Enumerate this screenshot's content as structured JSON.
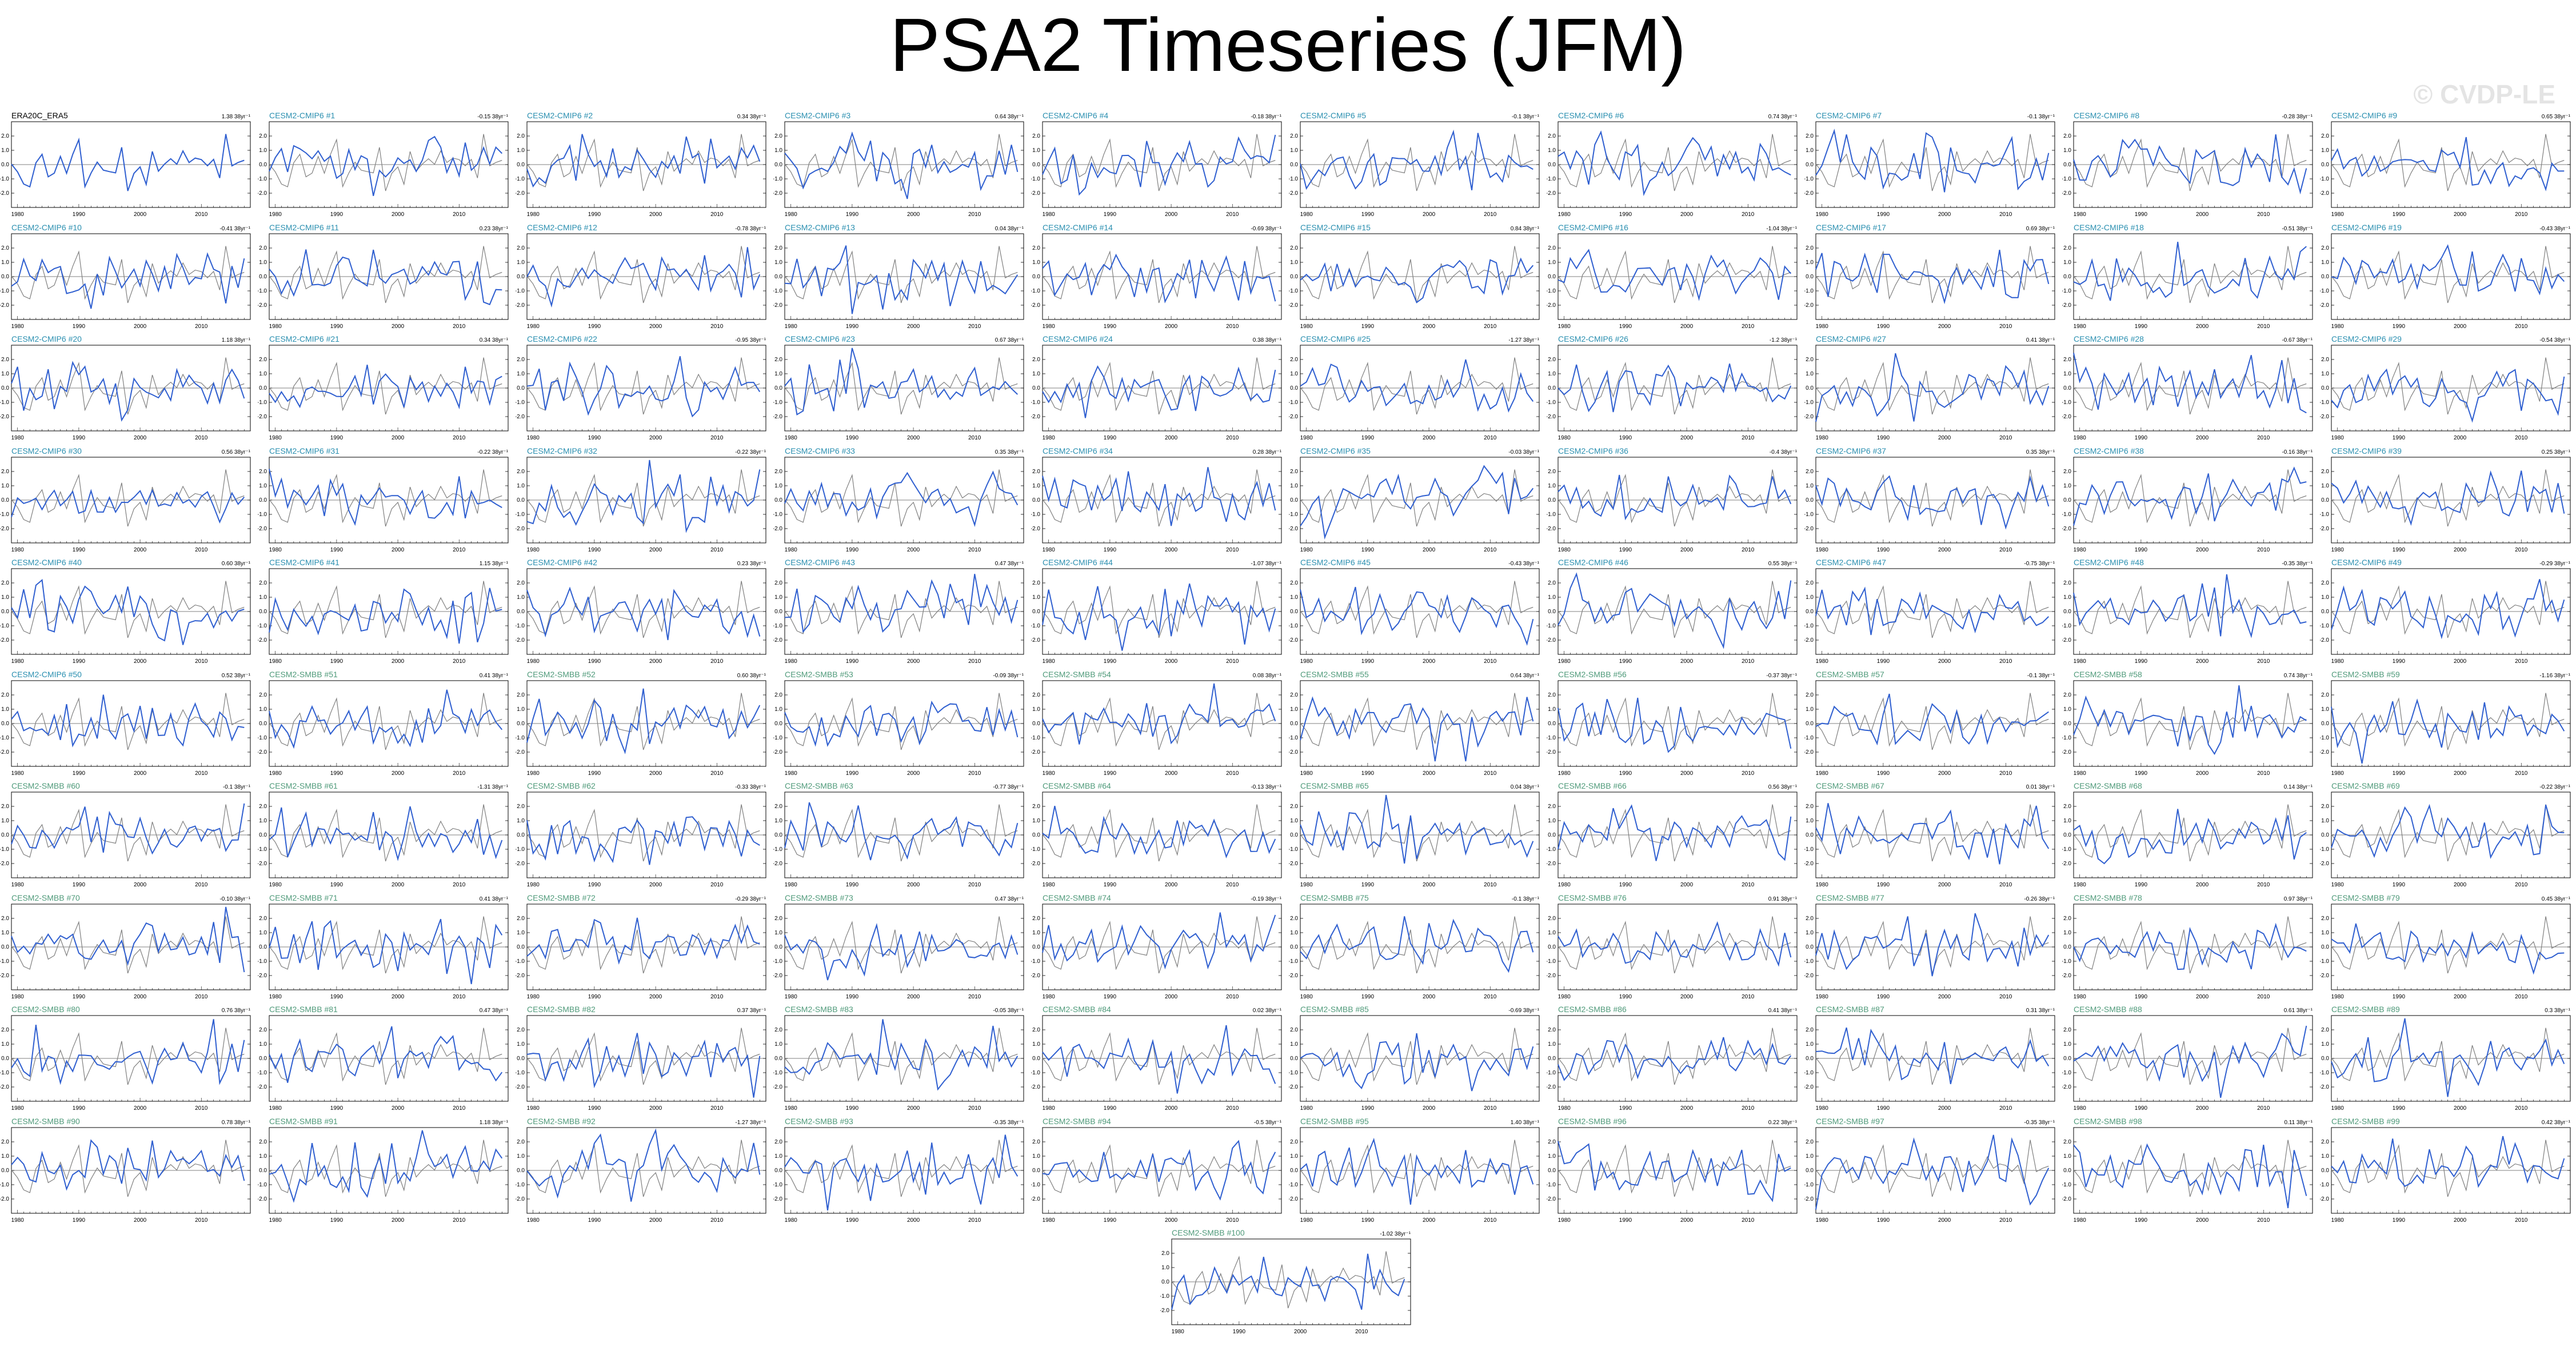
{
  "title": "PSA2 Timeseries (JFM)",
  "watermark": "© CVDP-LE",
  "colors": {
    "observed": "#7f7f7f",
    "member": "#2f5fd0",
    "cmip6_label": "#2a8fb0",
    "smbb_label": "#4f9a7a",
    "obs_label": "#000000"
  },
  "chart_data": {
    "type": "line",
    "x_ticks": [
      1980,
      1990,
      2000,
      2010
    ],
    "xlim": [
      1979,
      2018
    ],
    "y_ticks_default": [
      "-2.0",
      "-1.0",
      "0.0",
      "1.0",
      "2.0"
    ],
    "panels": [
      {
        "label": "ERA20C_ERA5",
        "trend": "1.38 38yr⁻¹",
        "group": "obs"
      },
      {
        "label": "CESM2-CMIP6 #1",
        "trend": "-0.15 38yr⁻¹",
        "group": "cmip6"
      },
      {
        "label": "CESM2-CMIP6 #2",
        "trend": "0.34 38yr⁻¹",
        "group": "cmip6"
      },
      {
        "label": "CESM2-CMIP6 #3",
        "trend": "0.64 38yr⁻¹",
        "group": "cmip6"
      },
      {
        "label": "CESM2-CMIP6 #4",
        "trend": "-0.18 38yr⁻¹",
        "group": "cmip6"
      },
      {
        "label": "CESM2-CMIP6 #5",
        "trend": "-0.1 38yr⁻¹",
        "group": "cmip6"
      },
      {
        "label": "CESM2-CMIP6 #6",
        "trend": "0.74 38yr⁻¹",
        "group": "cmip6"
      },
      {
        "label": "CESM2-CMIP6 #7",
        "trend": "-0.1 38yr⁻¹",
        "group": "cmip6"
      },
      {
        "label": "CESM2-CMIP6 #8",
        "trend": "-0.28 38yr⁻¹",
        "group": "cmip6"
      },
      {
        "label": "CESM2-CMIP6 #9",
        "trend": "0.65 38yr⁻¹",
        "group": "cmip6"
      },
      {
        "label": "CESM2-CMIP6 #10",
        "trend": "-0.41 38yr⁻¹",
        "group": "cmip6"
      },
      {
        "label": "CESM2-CMIP6 #11",
        "trend": "0.23 38yr⁻¹",
        "group": "cmip6"
      },
      {
        "label": "CESM2-CMIP6 #12",
        "trend": "-0.78 38yr⁻¹",
        "group": "cmip6"
      },
      {
        "label": "CESM2-CMIP6 #13",
        "trend": "0.04 38yr⁻¹",
        "group": "cmip6"
      },
      {
        "label": "CESM2-CMIP6 #14",
        "trend": "-0.69 38yr⁻¹",
        "group": "cmip6"
      },
      {
        "label": "CESM2-CMIP6 #15",
        "trend": "0.84 38yr⁻¹",
        "group": "cmip6"
      },
      {
        "label": "CESM2-CMIP6 #16",
        "trend": "-1.04 38yr⁻¹",
        "group": "cmip6"
      },
      {
        "label": "CESM2-CMIP6 #17",
        "trend": "0.69 38yr⁻¹",
        "group": "cmip6"
      },
      {
        "label": "CESM2-CMIP6 #18",
        "trend": "-0.51 38yr⁻¹",
        "group": "cmip6"
      },
      {
        "label": "CESM2-CMIP6 #19",
        "trend": "-0.43 38yr⁻¹",
        "group": "cmip6"
      },
      {
        "label": "CESM2-CMIP6 #20",
        "trend": "1.18 38yr⁻¹",
        "group": "cmip6"
      },
      {
        "label": "CESM2-CMIP6 #21",
        "trend": "0.34 38yr⁻¹",
        "group": "cmip6"
      },
      {
        "label": "CESM2-CMIP6 #22",
        "trend": "-0.95 38yr⁻¹",
        "group": "cmip6"
      },
      {
        "label": "CESM2-CMIP6 #23",
        "trend": "0.67 38yr⁻¹",
        "group": "cmip6"
      },
      {
        "label": "CESM2-CMIP6 #24",
        "trend": "0.38 38yr⁻¹",
        "group": "cmip6"
      },
      {
        "label": "CESM2-CMIP6 #25",
        "trend": "-1.27 38yr⁻¹",
        "group": "cmip6"
      },
      {
        "label": "CESM2-CMIP6 #26",
        "trend": "-1.2 38yr⁻¹",
        "group": "cmip6"
      },
      {
        "label": "CESM2-CMIP6 #27",
        "trend": "0.41 38yr⁻¹",
        "group": "cmip6"
      },
      {
        "label": "CESM2-CMIP6 #28",
        "trend": "-0.67 38yr⁻¹",
        "group": "cmip6"
      },
      {
        "label": "CESM2-CMIP6 #29",
        "trend": "-0.54 38yr⁻¹",
        "group": "cmip6"
      },
      {
        "label": "CESM2-CMIP6 #30",
        "trend": "0.56 38yr⁻¹",
        "group": "cmip6"
      },
      {
        "label": "CESM2-CMIP6 #31",
        "trend": "-0.22 38yr⁻¹",
        "group": "cmip6"
      },
      {
        "label": "CESM2-CMIP6 #32",
        "trend": "-0.22 38yr⁻¹",
        "group": "cmip6"
      },
      {
        "label": "CESM2-CMIP6 #33",
        "trend": "0.35 38yr⁻¹",
        "group": "cmip6"
      },
      {
        "label": "CESM2-CMIP6 #34",
        "trend": "0.28 38yr⁻¹",
        "group": "cmip6"
      },
      {
        "label": "CESM2-CMIP6 #35",
        "trend": "-0.03 38yr⁻¹",
        "group": "cmip6"
      },
      {
        "label": "CESM2-CMIP6 #36",
        "trend": "-0.4 38yr⁻¹",
        "group": "cmip6"
      },
      {
        "label": "CESM2-CMIP6 #37",
        "trend": "0.35 38yr⁻¹",
        "group": "cmip6"
      },
      {
        "label": "CESM2-CMIP6 #38",
        "trend": "-0.16 38yr⁻¹",
        "group": "cmip6"
      },
      {
        "label": "CESM2-CMIP6 #39",
        "trend": "0.25 38yr⁻¹",
        "group": "cmip6"
      },
      {
        "label": "CESM2-CMIP6 #40",
        "trend": "0.60 38yr⁻¹",
        "group": "cmip6"
      },
      {
        "label": "CESM2-CMIP6 #41",
        "trend": "1.15 38yr⁻¹",
        "group": "cmip6"
      },
      {
        "label": "CESM2-CMIP6 #42",
        "trend": "0.23 38yr⁻¹",
        "group": "cmip6"
      },
      {
        "label": "CESM2-CMIP6 #43",
        "trend": "0.47 38yr⁻¹",
        "group": "cmip6"
      },
      {
        "label": "CESM2-CMIP6 #44",
        "trend": "-1.07 38yr⁻¹",
        "group": "cmip6"
      },
      {
        "label": "CESM2-CMIP6 #45",
        "trend": "-0.43 38yr⁻¹",
        "group": "cmip6"
      },
      {
        "label": "CESM2-CMIP6 #46",
        "trend": "0.55 38yr⁻¹",
        "group": "cmip6"
      },
      {
        "label": "CESM2-CMIP6 #47",
        "trend": "-0.75 38yr⁻¹",
        "group": "cmip6"
      },
      {
        "label": "CESM2-CMIP6 #48",
        "trend": "-0.35 38yr⁻¹",
        "group": "cmip6"
      },
      {
        "label": "CESM2-CMIP6 #49",
        "trend": "-0.29 38yr⁻¹",
        "group": "cmip6"
      },
      {
        "label": "CESM2-CMIP6 #50",
        "trend": "0.52 38yr⁻¹",
        "group": "cmip6"
      },
      {
        "label": "CESM2-SMBB #51",
        "trend": "0.41 38yr⁻¹",
        "group": "smbb"
      },
      {
        "label": "CESM2-SMBB #52",
        "trend": "0.60 38yr⁻¹",
        "group": "smbb"
      },
      {
        "label": "CESM2-SMBB #53",
        "trend": "-0.09 38yr⁻¹",
        "group": "smbb"
      },
      {
        "label": "CESM2-SMBB #54",
        "trend": "0.08 38yr⁻¹",
        "group": "smbb"
      },
      {
        "label": "CESM2-SMBB #55",
        "trend": "0.64 38yr⁻¹",
        "group": "smbb"
      },
      {
        "label": "CESM2-SMBB #56",
        "trend": "-0.37 38yr⁻¹",
        "group": "smbb"
      },
      {
        "label": "CESM2-SMBB #57",
        "trend": "-0.1 38yr⁻¹",
        "group": "smbb"
      },
      {
        "label": "CESM2-SMBB #58",
        "trend": "0.74 38yr⁻¹",
        "group": "smbb"
      },
      {
        "label": "CESM2-SMBB #59",
        "trend": "-1.16 38yr⁻¹",
        "group": "smbb"
      },
      {
        "label": "CESM2-SMBB #60",
        "trend": "-0.1 38yr⁻¹",
        "group": "smbb"
      },
      {
        "label": "CESM2-SMBB #61",
        "trend": "-1.31 38yr⁻¹",
        "group": "smbb"
      },
      {
        "label": "CESM2-SMBB #62",
        "trend": "-0.33 38yr⁻¹",
        "group": "smbb"
      },
      {
        "label": "CESM2-SMBB #63",
        "trend": "-0.77 38yr⁻¹",
        "group": "smbb"
      },
      {
        "label": "CESM2-SMBB #64",
        "trend": "-0.13 38yr⁻¹",
        "group": "smbb"
      },
      {
        "label": "CESM2-SMBB #65",
        "trend": "0.04 38yr⁻¹",
        "group": "smbb"
      },
      {
        "label": "CESM2-SMBB #66",
        "trend": "0.56 38yr⁻¹",
        "group": "smbb"
      },
      {
        "label": "CESM2-SMBB #67",
        "trend": "0.01 38yr⁻¹",
        "group": "smbb"
      },
      {
        "label": "CESM2-SMBB #68",
        "trend": "0.14 38yr⁻¹",
        "group": "smbb"
      },
      {
        "label": "CESM2-SMBB #69",
        "trend": "-0.22 38yr⁻¹",
        "group": "smbb"
      },
      {
        "label": "CESM2-SMBB #70",
        "trend": "-0.10 38yr⁻¹",
        "group": "smbb"
      },
      {
        "label": "CESM2-SMBB #71",
        "trend": "0.41 38yr⁻¹",
        "group": "smbb"
      },
      {
        "label": "CESM2-SMBB #72",
        "trend": "-0.29 38yr⁻¹",
        "group": "smbb"
      },
      {
        "label": "CESM2-SMBB #73",
        "trend": "0.47 38yr⁻¹",
        "group": "smbb"
      },
      {
        "label": "CESM2-SMBB #74",
        "trend": "-0.19 38yr⁻¹",
        "group": "smbb"
      },
      {
        "label": "CESM2-SMBB #75",
        "trend": "-0.1 38yr⁻¹",
        "group": "smbb"
      },
      {
        "label": "CESM2-SMBB #76",
        "trend": "0.91 38yr⁻¹",
        "group": "smbb"
      },
      {
        "label": "CESM2-SMBB #77",
        "trend": "-0.26 38yr⁻¹",
        "group": "smbb"
      },
      {
        "label": "CESM2-SMBB #78",
        "trend": "0.97 38yr⁻¹",
        "group": "smbb"
      },
      {
        "label": "CESM2-SMBB #79",
        "trend": "0.45 38yr⁻¹",
        "group": "smbb"
      },
      {
        "label": "CESM2-SMBB #80",
        "trend": "0.76 38yr⁻¹",
        "group": "smbb"
      },
      {
        "label": "CESM2-SMBB #81",
        "trend": "0.47 38yr⁻¹",
        "group": "smbb"
      },
      {
        "label": "CESM2-SMBB #82",
        "trend": "0.37 38yr⁻¹",
        "group": "smbb"
      },
      {
        "label": "CESM2-SMBB #83",
        "trend": "-0.05 38yr⁻¹",
        "group": "smbb"
      },
      {
        "label": "CESM2-SMBB #84",
        "trend": "0.02 38yr⁻¹",
        "group": "smbb"
      },
      {
        "label": "CESM2-SMBB #85",
        "trend": "-0.69 38yr⁻¹",
        "group": "smbb"
      },
      {
        "label": "CESM2-SMBB #86",
        "trend": "0.41 38yr⁻¹",
        "group": "smbb"
      },
      {
        "label": "CESM2-SMBB #87",
        "trend": "0.31 38yr⁻¹",
        "group": "smbb"
      },
      {
        "label": "CESM2-SMBB #88",
        "trend": "0.61 38yr⁻¹",
        "group": "smbb"
      },
      {
        "label": "CESM2-SMBB #89",
        "trend": "0.3 38yr⁻¹",
        "group": "smbb"
      },
      {
        "label": "CESM2-SMBB #90",
        "trend": "0.78 38yr⁻¹",
        "group": "smbb"
      },
      {
        "label": "CESM2-SMBB #91",
        "trend": "1.18 38yr⁻¹",
        "group": "smbb"
      },
      {
        "label": "CESM2-SMBB #92",
        "trend": "-1.27 38yr⁻¹",
        "group": "smbb"
      },
      {
        "label": "CESM2-SMBB #93",
        "trend": "-0.35 38yr⁻¹",
        "group": "smbb"
      },
      {
        "label": "CESM2-SMBB #94",
        "trend": "-0.5 38yr⁻¹",
        "group": "smbb"
      },
      {
        "label": "CESM2-SMBB #95",
        "trend": "1.40 38yr⁻¹",
        "group": "smbb"
      },
      {
        "label": "CESM2-SMBB #96",
        "trend": "0.22 38yr⁻¹",
        "group": "smbb"
      },
      {
        "label": "CESM2-SMBB #97",
        "trend": "-0.35 38yr⁻¹",
        "group": "smbb"
      },
      {
        "label": "CESM2-SMBB #98",
        "trend": "0.11 38yr⁻¹",
        "group": "smbb"
      },
      {
        "label": "CESM2-SMBB #99",
        "trend": "0.42 38yr⁻¹",
        "group": "smbb"
      },
      {
        "label": "CESM2-SMBB #100",
        "trend": "-1.02 38yr⁻¹",
        "group": "smbb"
      }
    ]
  }
}
